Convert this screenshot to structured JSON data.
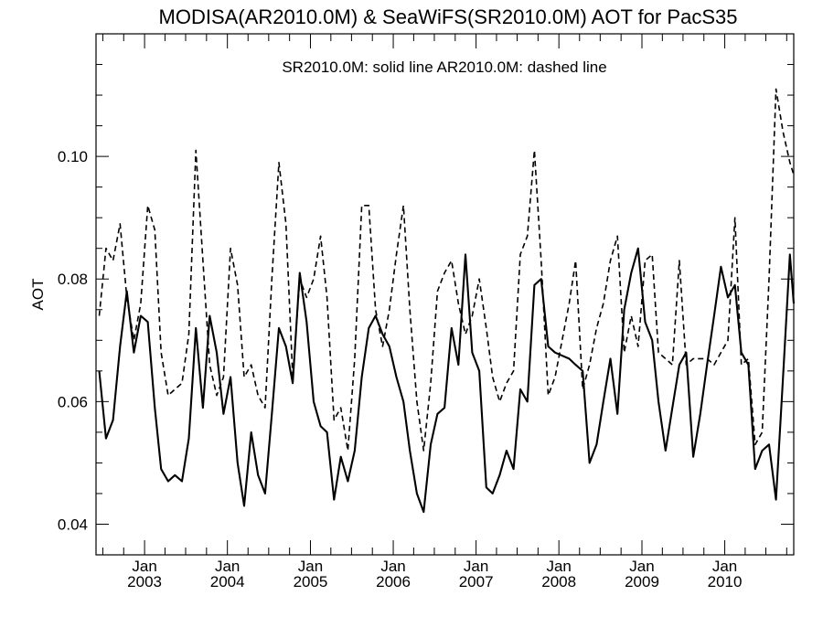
{
  "chart_data": {
    "type": "line",
    "title": "MODISA(AR2010.0M) & SeaWiFS(SR2010.0M)  AOT for PacS35",
    "annotation": "SR2010.0M: solid line   AR2010.0M: dashed line",
    "xlabel": "",
    "ylabel": "AOT",
    "xlim": [
      "2002-06-01",
      "2010-11-01"
    ],
    "ylim": [
      0.035,
      0.12
    ],
    "yticks": [
      {
        "value": 0.04,
        "label": "0.04"
      },
      {
        "value": 0.06,
        "label": "0.06"
      },
      {
        "value": 0.08,
        "label": "0.08"
      },
      {
        "value": 0.1,
        "label": "0.10"
      }
    ],
    "xticks": [
      {
        "date": "2003-01-01",
        "month": "Jan",
        "year": "2003"
      },
      {
        "date": "2004-01-01",
        "month": "Jan",
        "year": "2004"
      },
      {
        "date": "2005-01-01",
        "month": "Jan",
        "year": "2005"
      },
      {
        "date": "2006-01-01",
        "month": "Jan",
        "year": "2006"
      },
      {
        "date": "2007-01-01",
        "month": "Jan",
        "year": "2007"
      },
      {
        "date": "2008-01-01",
        "month": "Jan",
        "year": "2008"
      },
      {
        "date": "2009-01-01",
        "month": "Jan",
        "year": "2009"
      },
      {
        "date": "2010-01-01",
        "month": "Jan",
        "year": "2010"
      }
    ],
    "grid": false,
    "series": [
      {
        "name": "SR2010.0M",
        "style": "solid",
        "color": "#000000",
        "points": [
          [
            "2002-06-15",
            0.065
          ],
          [
            "2002-07-15",
            0.054
          ],
          [
            "2002-08-15",
            0.057
          ],
          [
            "2002-09-15",
            0.069
          ],
          [
            "2002-10-15",
            0.078
          ],
          [
            "2002-11-15",
            0.068
          ],
          [
            "2002-12-15",
            0.074
          ],
          [
            "2003-01-15",
            0.073
          ],
          [
            "2003-02-15",
            0.059
          ],
          [
            "2003-03-15",
            0.049
          ],
          [
            "2003-04-15",
            0.047
          ],
          [
            "2003-05-15",
            0.048
          ],
          [
            "2003-06-15",
            0.047
          ],
          [
            "2003-07-15",
            0.054
          ],
          [
            "2003-08-15",
            0.072
          ],
          [
            "2003-09-15",
            0.059
          ],
          [
            "2003-10-15",
            0.074
          ],
          [
            "2003-11-15",
            0.068
          ],
          [
            "2003-12-15",
            0.058
          ],
          [
            "2004-01-15",
            0.064
          ],
          [
            "2004-02-15",
            0.05
          ],
          [
            "2004-03-15",
            0.043
          ],
          [
            "2004-04-15",
            0.055
          ],
          [
            "2004-05-15",
            0.048
          ],
          [
            "2004-06-15",
            0.045
          ],
          [
            "2004-07-15",
            0.058
          ],
          [
            "2004-08-15",
            0.072
          ],
          [
            "2004-09-15",
            0.069
          ],
          [
            "2004-10-15",
            0.063
          ],
          [
            "2004-11-15",
            0.081
          ],
          [
            "2004-12-15",
            0.073
          ],
          [
            "2005-01-15",
            0.06
          ],
          [
            "2005-02-15",
            0.056
          ],
          [
            "2005-03-15",
            0.055
          ],
          [
            "2005-04-15",
            0.044
          ],
          [
            "2005-05-15",
            0.051
          ],
          [
            "2005-06-15",
            0.047
          ],
          [
            "2005-07-15",
            0.052
          ],
          [
            "2005-08-15",
            0.064
          ],
          [
            "2005-09-15",
            0.072
          ],
          [
            "2005-10-15",
            0.074
          ],
          [
            "2005-11-15",
            0.071
          ],
          [
            "2005-12-15",
            0.069
          ],
          [
            "2006-01-15",
            0.064
          ],
          [
            "2006-02-15",
            0.06
          ],
          [
            "2006-03-15",
            0.052
          ],
          [
            "2006-04-15",
            0.045
          ],
          [
            "2006-05-15",
            0.042
          ],
          [
            "2006-06-15",
            0.053
          ],
          [
            "2006-07-15",
            0.058
          ],
          [
            "2006-08-15",
            0.059
          ],
          [
            "2006-09-15",
            0.072
          ],
          [
            "2006-10-15",
            0.066
          ],
          [
            "2006-11-15",
            0.084
          ],
          [
            "2006-12-15",
            0.068
          ],
          [
            "2007-01-15",
            0.065
          ],
          [
            "2007-02-15",
            0.046
          ],
          [
            "2007-03-15",
            0.045
          ],
          [
            "2007-04-15",
            0.048
          ],
          [
            "2007-05-15",
            0.052
          ],
          [
            "2007-06-15",
            0.049
          ],
          [
            "2007-07-15",
            0.062
          ],
          [
            "2007-08-15",
            0.06
          ],
          [
            "2007-09-15",
            0.079
          ],
          [
            "2007-10-15",
            0.08
          ],
          [
            "2007-11-15",
            0.069
          ],
          [
            "2007-12-15",
            0.068
          ],
          [
            "2008-01-15",
            0.0675
          ],
          [
            "2008-02-15",
            0.067
          ],
          [
            "2008-03-15",
            0.066
          ],
          [
            "2008-04-15",
            0.065
          ],
          [
            "2008-05-15",
            0.05
          ],
          [
            "2008-06-15",
            0.053
          ],
          [
            "2008-07-15",
            0.06
          ],
          [
            "2008-08-15",
            0.067
          ],
          [
            "2008-09-15",
            0.058
          ],
          [
            "2008-10-15",
            0.075
          ],
          [
            "2008-11-15",
            0.081
          ],
          [
            "2008-12-15",
            0.085
          ],
          [
            "2009-01-15",
            0.073
          ],
          [
            "2009-02-15",
            0.07
          ],
          [
            "2009-03-15",
            0.06
          ],
          [
            "2009-04-15",
            0.052
          ],
          [
            "2009-05-15",
            0.059
          ],
          [
            "2009-06-15",
            0.066
          ],
          [
            "2009-07-15",
            0.068
          ],
          [
            "2009-08-15",
            0.051
          ],
          [
            "2009-09-15",
            0.058
          ],
          [
            "2009-10-15",
            0.066
          ],
          [
            "2009-11-15",
            0.074
          ],
          [
            "2009-12-15",
            0.082
          ],
          [
            "2010-01-15",
            0.077
          ],
          [
            "2010-02-15",
            0.079
          ],
          [
            "2010-03-15",
            0.068
          ],
          [
            "2010-04-15",
            0.066
          ],
          [
            "2010-05-15",
            0.049
          ],
          [
            "2010-06-15",
            0.052
          ],
          [
            "2010-07-15",
            0.053
          ],
          [
            "2010-08-15",
            0.044
          ],
          [
            "2010-09-15",
            0.064
          ],
          [
            "2010-10-15",
            0.084
          ],
          [
            "2010-11-01",
            0.076
          ]
        ]
      },
      {
        "name": "AR2010.0M",
        "style": "dashed",
        "color": "#000000",
        "points": [
          [
            "2002-06-15",
            0.074
          ],
          [
            "2002-07-15",
            0.085
          ],
          [
            "2002-08-15",
            0.083
          ],
          [
            "2002-09-15",
            0.089
          ],
          [
            "2002-10-15",
            0.077
          ],
          [
            "2002-11-15",
            0.07
          ],
          [
            "2002-12-15",
            0.076
          ],
          [
            "2003-01-15",
            0.092
          ],
          [
            "2003-02-15",
            0.088
          ],
          [
            "2003-03-15",
            0.068
          ],
          [
            "2003-04-15",
            0.061
          ],
          [
            "2003-05-15",
            0.062
          ],
          [
            "2003-06-15",
            0.063
          ],
          [
            "2003-07-15",
            0.071
          ],
          [
            "2003-08-15",
            0.101
          ],
          [
            "2003-09-15",
            0.083
          ],
          [
            "2003-10-15",
            0.066
          ],
          [
            "2003-11-15",
            0.061
          ],
          [
            "2003-12-15",
            0.064
          ],
          [
            "2004-01-15",
            0.085
          ],
          [
            "2004-02-15",
            0.079
          ],
          [
            "2004-03-15",
            0.064
          ],
          [
            "2004-04-15",
            0.066
          ],
          [
            "2004-05-15",
            0.061
          ],
          [
            "2004-06-15",
            0.059
          ],
          [
            "2004-07-15",
            0.08
          ],
          [
            "2004-08-15",
            0.099
          ],
          [
            "2004-09-15",
            0.089
          ],
          [
            "2004-10-15",
            0.064
          ],
          [
            "2004-11-15",
            0.08
          ],
          [
            "2004-12-15",
            0.077
          ],
          [
            "2005-01-15",
            0.08
          ],
          [
            "2005-02-15",
            0.087
          ],
          [
            "2005-03-15",
            0.077
          ],
          [
            "2005-04-15",
            0.057
          ],
          [
            "2005-05-15",
            0.059
          ],
          [
            "2005-06-15",
            0.052
          ],
          [
            "2005-07-15",
            0.067
          ],
          [
            "2005-08-15",
            0.092
          ],
          [
            "2005-09-15",
            0.092
          ],
          [
            "2005-10-15",
            0.075
          ],
          [
            "2005-11-15",
            0.069
          ],
          [
            "2005-12-15",
            0.075
          ],
          [
            "2006-01-15",
            0.084
          ],
          [
            "2006-02-15",
            0.092
          ],
          [
            "2006-03-15",
            0.075
          ],
          [
            "2006-04-15",
            0.06
          ],
          [
            "2006-05-15",
            0.052
          ],
          [
            "2006-06-15",
            0.063
          ],
          [
            "2006-07-15",
            0.078
          ],
          [
            "2006-08-15",
            0.081
          ],
          [
            "2006-09-15",
            0.083
          ],
          [
            "2006-10-15",
            0.076
          ],
          [
            "2006-11-15",
            0.071
          ],
          [
            "2006-12-15",
            0.074
          ],
          [
            "2007-01-15",
            0.08
          ],
          [
            "2007-02-15",
            0.072
          ],
          [
            "2007-03-15",
            0.064
          ],
          [
            "2007-04-15",
            0.06
          ],
          [
            "2007-05-15",
            0.063
          ],
          [
            "2007-06-15",
            0.065
          ],
          [
            "2007-07-15",
            0.084
          ],
          [
            "2007-08-15",
            0.087
          ],
          [
            "2007-09-15",
            0.101
          ],
          [
            "2007-10-15",
            0.083
          ],
          [
            "2007-11-15",
            0.061
          ],
          [
            "2007-12-15",
            0.064
          ],
          [
            "2008-01-15",
            0.07
          ],
          [
            "2008-02-15",
            0.076
          ],
          [
            "2008-03-15",
            0.083
          ],
          [
            "2008-04-15",
            0.062
          ],
          [
            "2008-05-15",
            0.066
          ],
          [
            "2008-06-15",
            0.072
          ],
          [
            "2008-07-15",
            0.076
          ],
          [
            "2008-08-15",
            0.083
          ],
          [
            "2008-09-15",
            0.087
          ],
          [
            "2008-10-15",
            0.068
          ],
          [
            "2008-11-15",
            0.074
          ],
          [
            "2008-12-15",
            0.069
          ],
          [
            "2009-01-15",
            0.083
          ],
          [
            "2009-02-15",
            0.084
          ],
          [
            "2009-03-15",
            0.068
          ],
          [
            "2009-04-15",
            0.067
          ],
          [
            "2009-05-15",
            0.066
          ],
          [
            "2009-06-15",
            0.083
          ],
          [
            "2009-07-15",
            0.066
          ],
          [
            "2009-08-15",
            0.067
          ],
          [
            "2009-09-15",
            0.067
          ],
          [
            "2009-10-15",
            0.067
          ],
          [
            "2009-11-15",
            0.066
          ],
          [
            "2009-12-15",
            0.068
          ],
          [
            "2010-01-15",
            0.07
          ],
          [
            "2010-02-15",
            0.09
          ],
          [
            "2010-03-15",
            0.066
          ],
          [
            "2010-04-15",
            0.067
          ],
          [
            "2010-05-15",
            0.053
          ],
          [
            "2010-06-15",
            0.055
          ],
          [
            "2010-07-15",
            0.08
          ],
          [
            "2010-08-15",
            0.111
          ],
          [
            "2010-09-15",
            0.104
          ],
          [
            "2010-10-15",
            0.099
          ],
          [
            "2010-11-01",
            0.097
          ]
        ]
      }
    ]
  }
}
